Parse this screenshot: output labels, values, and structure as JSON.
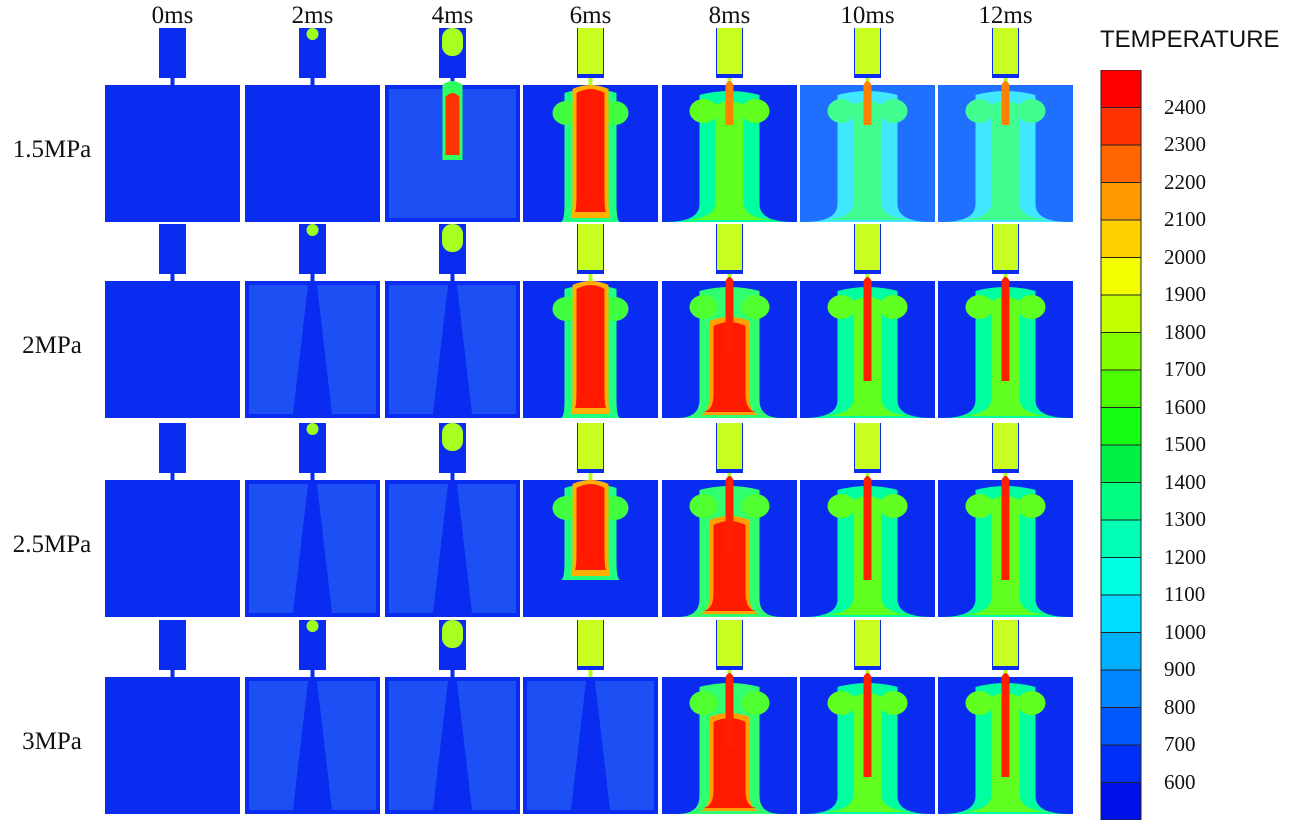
{
  "time_labels": [
    "0ms",
    "2ms",
    "4ms",
    "6ms",
    "8ms",
    "10ms",
    "12ms"
  ],
  "pressure_labels": [
    "1.5MPa",
    "2MPa",
    "2.5MPa",
    "3MPa"
  ],
  "legend": {
    "title": "TEMPERATURE",
    "ticks": [
      "2400",
      "2300",
      "2200",
      "2100",
      "2000",
      "1900",
      "1800",
      "1700",
      "1600",
      "1500",
      "1400",
      "1300",
      "1200",
      "1100",
      "1000",
      "900",
      "800",
      "700",
      "600"
    ],
    "colors": [
      "#ff0000",
      "#ff3300",
      "#ff6600",
      "#ff9900",
      "#ffd000",
      "#f2ff00",
      "#c4ff00",
      "#82ff00",
      "#4cff00",
      "#14ff14",
      "#00f048",
      "#00ff80",
      "#00ffb4",
      "#00ffe0",
      "#00ddff",
      "#00b0ff",
      "#0084ff",
      "#0058ff",
      "#0030f8",
      "#0010e8"
    ]
  }
}
